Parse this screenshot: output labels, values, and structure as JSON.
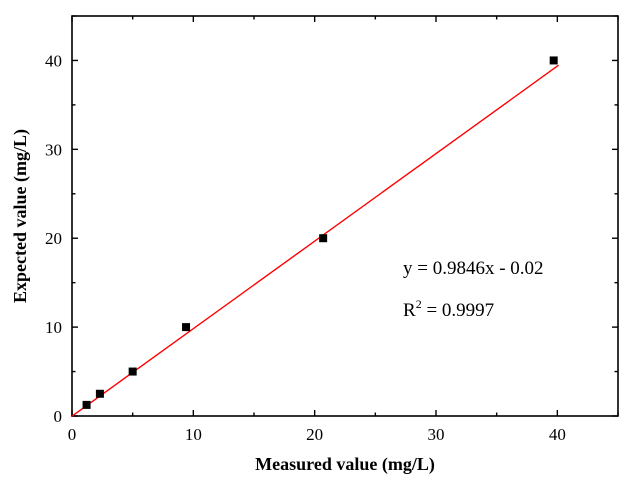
{
  "chart_data": {
    "type": "scatter",
    "xlabel": "Measured value (mg/L)",
    "ylabel": "Expected value (mg/L)",
    "xlim": [
      0,
      45
    ],
    "ylim": [
      0,
      45
    ],
    "xticks": [
      "0",
      "10",
      "20",
      "30",
      "40"
    ],
    "yticks": [
      "0",
      "10",
      "20",
      "30",
      "40"
    ],
    "grid": false,
    "points": [
      {
        "x": 1.2,
        "y": 1.25
      },
      {
        "x": 2.3,
        "y": 2.5
      },
      {
        "x": 5.0,
        "y": 5.0
      },
      {
        "x": 9.4,
        "y": 10.0
      },
      {
        "x": 20.7,
        "y": 20.0
      },
      {
        "x": 39.7,
        "y": 40.0
      }
    ],
    "marker_color": "#000000",
    "fit": {
      "slope": 0.9846,
      "intercept": -0.02,
      "x_range": [
        0,
        40.1
      ],
      "color": "#ff0000"
    },
    "annotations": {
      "equation": "y = 0.9846x - 0.02",
      "r2_prefix": "R",
      "r2_sup": "2",
      "r2_value": " = 0.9997"
    }
  }
}
